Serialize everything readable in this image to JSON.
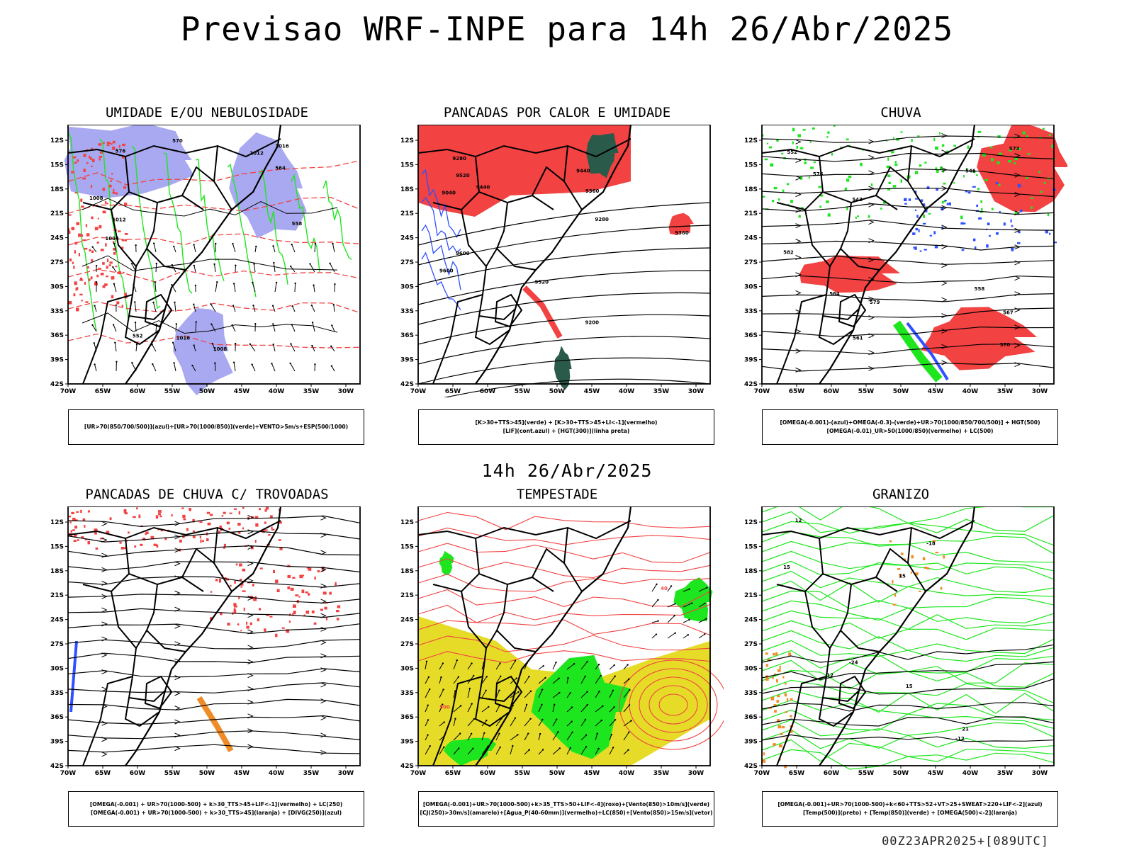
{
  "main_title": "Previsao WRF-INPE  para 14h 26/Abr/2025",
  "mid_title": "14h 26/Abr/2025",
  "footer": "00Z23APR2025+[089UTC]",
  "lat_labels": [
    "12S",
    "15S",
    "18S",
    "21S",
    "24S",
    "27S",
    "30S",
    "33S",
    "36S",
    "39S",
    "42S"
  ],
  "lon_labels": [
    "70W",
    "65W",
    "60W",
    "55W",
    "50W",
    "45W",
    "40W",
    "35W",
    "30W"
  ],
  "colors": {
    "red": "#f24242",
    "green": "#1ee61e",
    "blue": "#3050ff",
    "lavender": "#a0a0f0",
    "darkgreen": "#2a5a4a",
    "yellow": "#e6dc28",
    "orange": "#f08c28",
    "black": "#000000"
  },
  "panels": [
    {
      "id": "umidade",
      "title": "UMIDADE E/OU NEBULOSIDADE",
      "caption": [
        "[UR>70(850/700/500)](azul)+[UR>70(1000/850)](verde)+VENTO>5m/s+ESP(500/1000)"
      ],
      "contour_labels": [
        "1008",
        "1008",
        "1004",
        "1012",
        "1016",
        "1016",
        "1012",
        "576",
        "570",
        "564",
        "558",
        "552"
      ]
    },
    {
      "id": "pancadas",
      "title": "PANCADAS POR CALOR E UMIDADE",
      "caption": [
        "[K>30+TTS>45](verde) + [K>30+TTS>45+LI<-1](vermelho)",
        "[LIF](cont.azul) + [HGT(300)](linha preta)"
      ],
      "contour_labels": [
        "9600",
        "9600",
        "9520",
        "9440",
        "9440",
        "9360",
        "9360",
        "9280",
        "9280",
        "9200",
        "9040",
        "9520"
      ]
    },
    {
      "id": "chuva",
      "title": "CHUVA",
      "caption": [
        "[OMEGA(-0.001)-(azul)+OMEGA(-0.3)-(verde)+UR>70(1000/850/700/500)] + HGT(500)",
        "[OMEGA(-0.01)_UR>50(1000/850)(vermelho) + LC(500)"
      ],
      "contour_labels": [
        "582",
        "579",
        "576",
        "570",
        "567",
        "561",
        "558",
        "552",
        "546",
        "543",
        "573",
        "564"
      ]
    },
    {
      "id": "trovoadas",
      "title": "PANCADAS DE CHUVA C/ TROVOADAS",
      "caption": [
        "[OMEGA(-0.001) + UR>70(1000-500) + k>30_TTS>45+LIF<-1](vermelho) + LC(250)",
        "[OMEGA(-0.001) + UR>70(1000-500) + k>30_TTS>45](laranja) + [DIVG(250)](azul)"
      ],
      "contour_labels": []
    },
    {
      "id": "tempestade",
      "title": "TEMPESTADE",
      "caption": [
        "[OMEGA(-0.001)+UR>70(1000-500)+k>35_TTS>50+LIF<-4](roxo)+[Vento(850)>10m/s](verde)",
        "[CJ(250)>30m/s](amarelo)+[Agua_P(40-60mm)](vermelho)+LC(850)+[Vento(850)>15m/s](vetor)"
      ],
      "contour_labels": [
        "500",
        "40"
      ]
    },
    {
      "id": "granizo",
      "title": "GRANIZO",
      "caption": [
        "[OMEGA(-0.001)+UR>70(1000-500)+k<60+TTS>52+VT>25+SWEAT>220+LIF<-2](azul)",
        "[Temp(500)](preto) + [Temp(850)](verde) + [OMEGA(500)<-2](laranja)"
      ],
      "contour_labels": [
        "15",
        "12",
        "12",
        "15",
        "21",
        "-24",
        "-18",
        "-12",
        "15"
      ]
    }
  ]
}
